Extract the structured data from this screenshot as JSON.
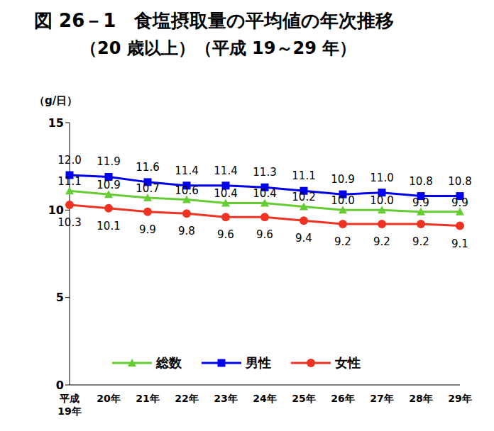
{
  "chart_data": {
    "type": "line",
    "title": "図 26－1　食塩摂取量の平均値の年次推移",
    "subtitle": "（20 歳以上）（平成 19～29 年）",
    "y_label": "（g/日）",
    "categories": [
      "平成19年",
      "20年",
      "21年",
      "22年",
      "23年",
      "24年",
      "25年",
      "26年",
      "27年",
      "28年",
      "29年"
    ],
    "ylim": [
      0,
      15
    ],
    "yticks": [
      0,
      5,
      10,
      15
    ],
    "grid": false,
    "legend": "bottom",
    "data_labels": true,
    "series": [
      {
        "name": "総数",
        "color": "#66cc33",
        "marker": "triangle",
        "values": [
          11.1,
          10.9,
          10.7,
          10.6,
          10.4,
          10.4,
          10.2,
          10.0,
          10.0,
          9.9,
          9.9
        ],
        "value_labels": [
          "11.1",
          "10.9",
          "10.7",
          "10.6",
          "10.4",
          "10.4",
          "10.2",
          "10.0",
          "10.0",
          "9.9",
          "9.9"
        ]
      },
      {
        "name": "男性",
        "color": "#0000ee",
        "marker": "square",
        "values": [
          12.0,
          11.9,
          11.6,
          11.4,
          11.4,
          11.3,
          11.1,
          10.9,
          11.0,
          10.8,
          10.8
        ],
        "value_labels": [
          "12.0",
          "11.9",
          "11.6",
          "11.4",
          "11.4",
          "11.3",
          "11.1",
          "10.9",
          "11.0",
          "10.8",
          "10.8"
        ]
      },
      {
        "name": "女性",
        "color": "#ee3322",
        "marker": "circle",
        "values": [
          10.3,
          10.1,
          9.9,
          9.8,
          9.6,
          9.6,
          9.4,
          9.2,
          9.2,
          9.2,
          9.1
        ],
        "value_labels": [
          "10.3",
          "10.1",
          "9.9",
          "9.8",
          "9.6",
          "9.6",
          "9.4",
          "9.2",
          "9.2",
          "9.2",
          "9.1"
        ]
      }
    ]
  }
}
